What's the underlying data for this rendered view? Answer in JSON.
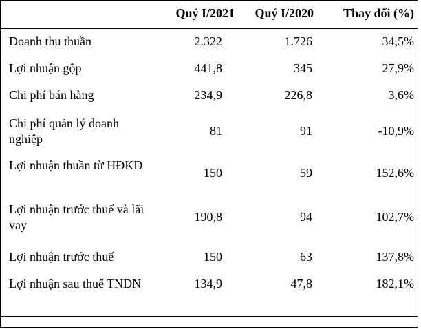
{
  "table": {
    "headers": [
      "",
      "Quý I/2021",
      "Quý I/2020",
      "Thay đổi (%)"
    ],
    "rows": [
      {
        "label": "Doanh thu thuần",
        "q1_2021": "2.322",
        "q1_2020": "1.726",
        "change": "34,5%"
      },
      {
        "label": "Lợi nhuận gộp",
        "q1_2021": "441,8",
        "q1_2020": "345",
        "change": "27,9%"
      },
      {
        "label": "Chi phí bán hàng",
        "q1_2021": "234,9",
        "q1_2020": "226,8",
        "change": "3,6%"
      },
      {
        "label": "Chi phí quản lý doanh nghiệp",
        "q1_2021": "81",
        "q1_2020": "91",
        "change": "-10,9%"
      },
      {
        "label": "Lợi nhuận thuần từ HĐKD",
        "q1_2021": "150",
        "q1_2020": "59",
        "change": "152,6%"
      },
      {
        "label": "Lợi nhuận trước thuế và lãi vay",
        "q1_2021": "190,8",
        "q1_2020": "94",
        "change": "102,7%"
      },
      {
        "label": "Lợi nhuận trước thuế",
        "q1_2021": "150",
        "q1_2020": "63",
        "change": "137,8%"
      },
      {
        "label": "Lợi nhuận sau thuế TNDN",
        "q1_2021": "134,9",
        "q1_2020": "47,8",
        "change": "182,1%"
      }
    ]
  }
}
